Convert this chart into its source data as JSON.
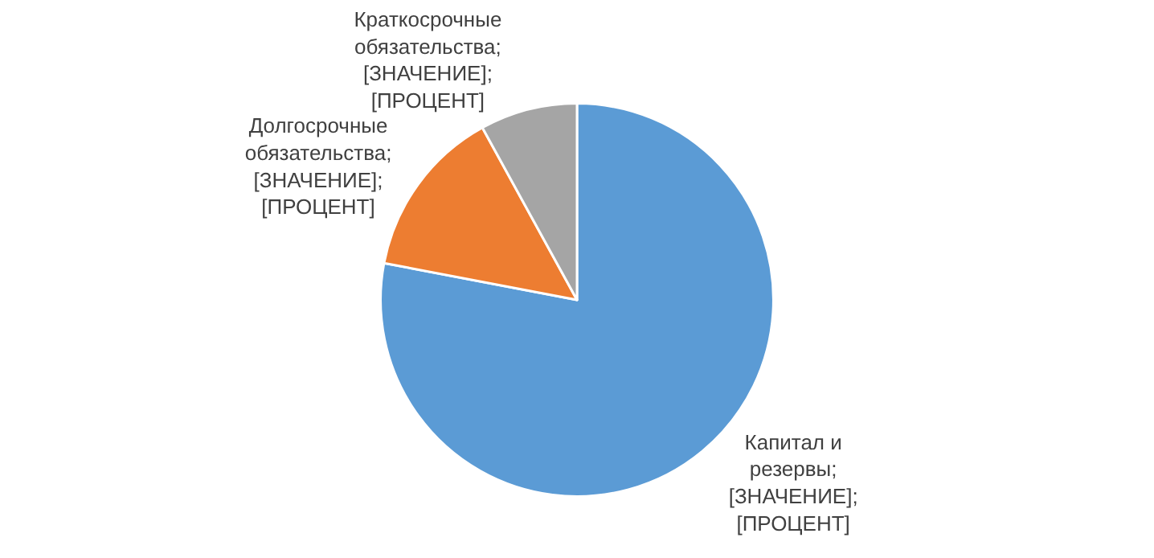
{
  "chart_data": {
    "type": "pie",
    "categories": [
      "Капитал и резервы; [ЗНАЧЕНИЕ]; [ПРОЦЕНТ]",
      "Долгосрочные обязательства; [ЗНАЧЕНИЕ]; [ПРОЦЕНТ]",
      "Краткосрочные обязательства; [ЗНАЧЕНИЕ]; [ПРОЦЕНТ]"
    ],
    "values": [
      78,
      14,
      8
    ],
    "colors": [
      "#5b9bd5",
      "#ed7d31",
      "#a5a5a5"
    ],
    "legend": false
  }
}
